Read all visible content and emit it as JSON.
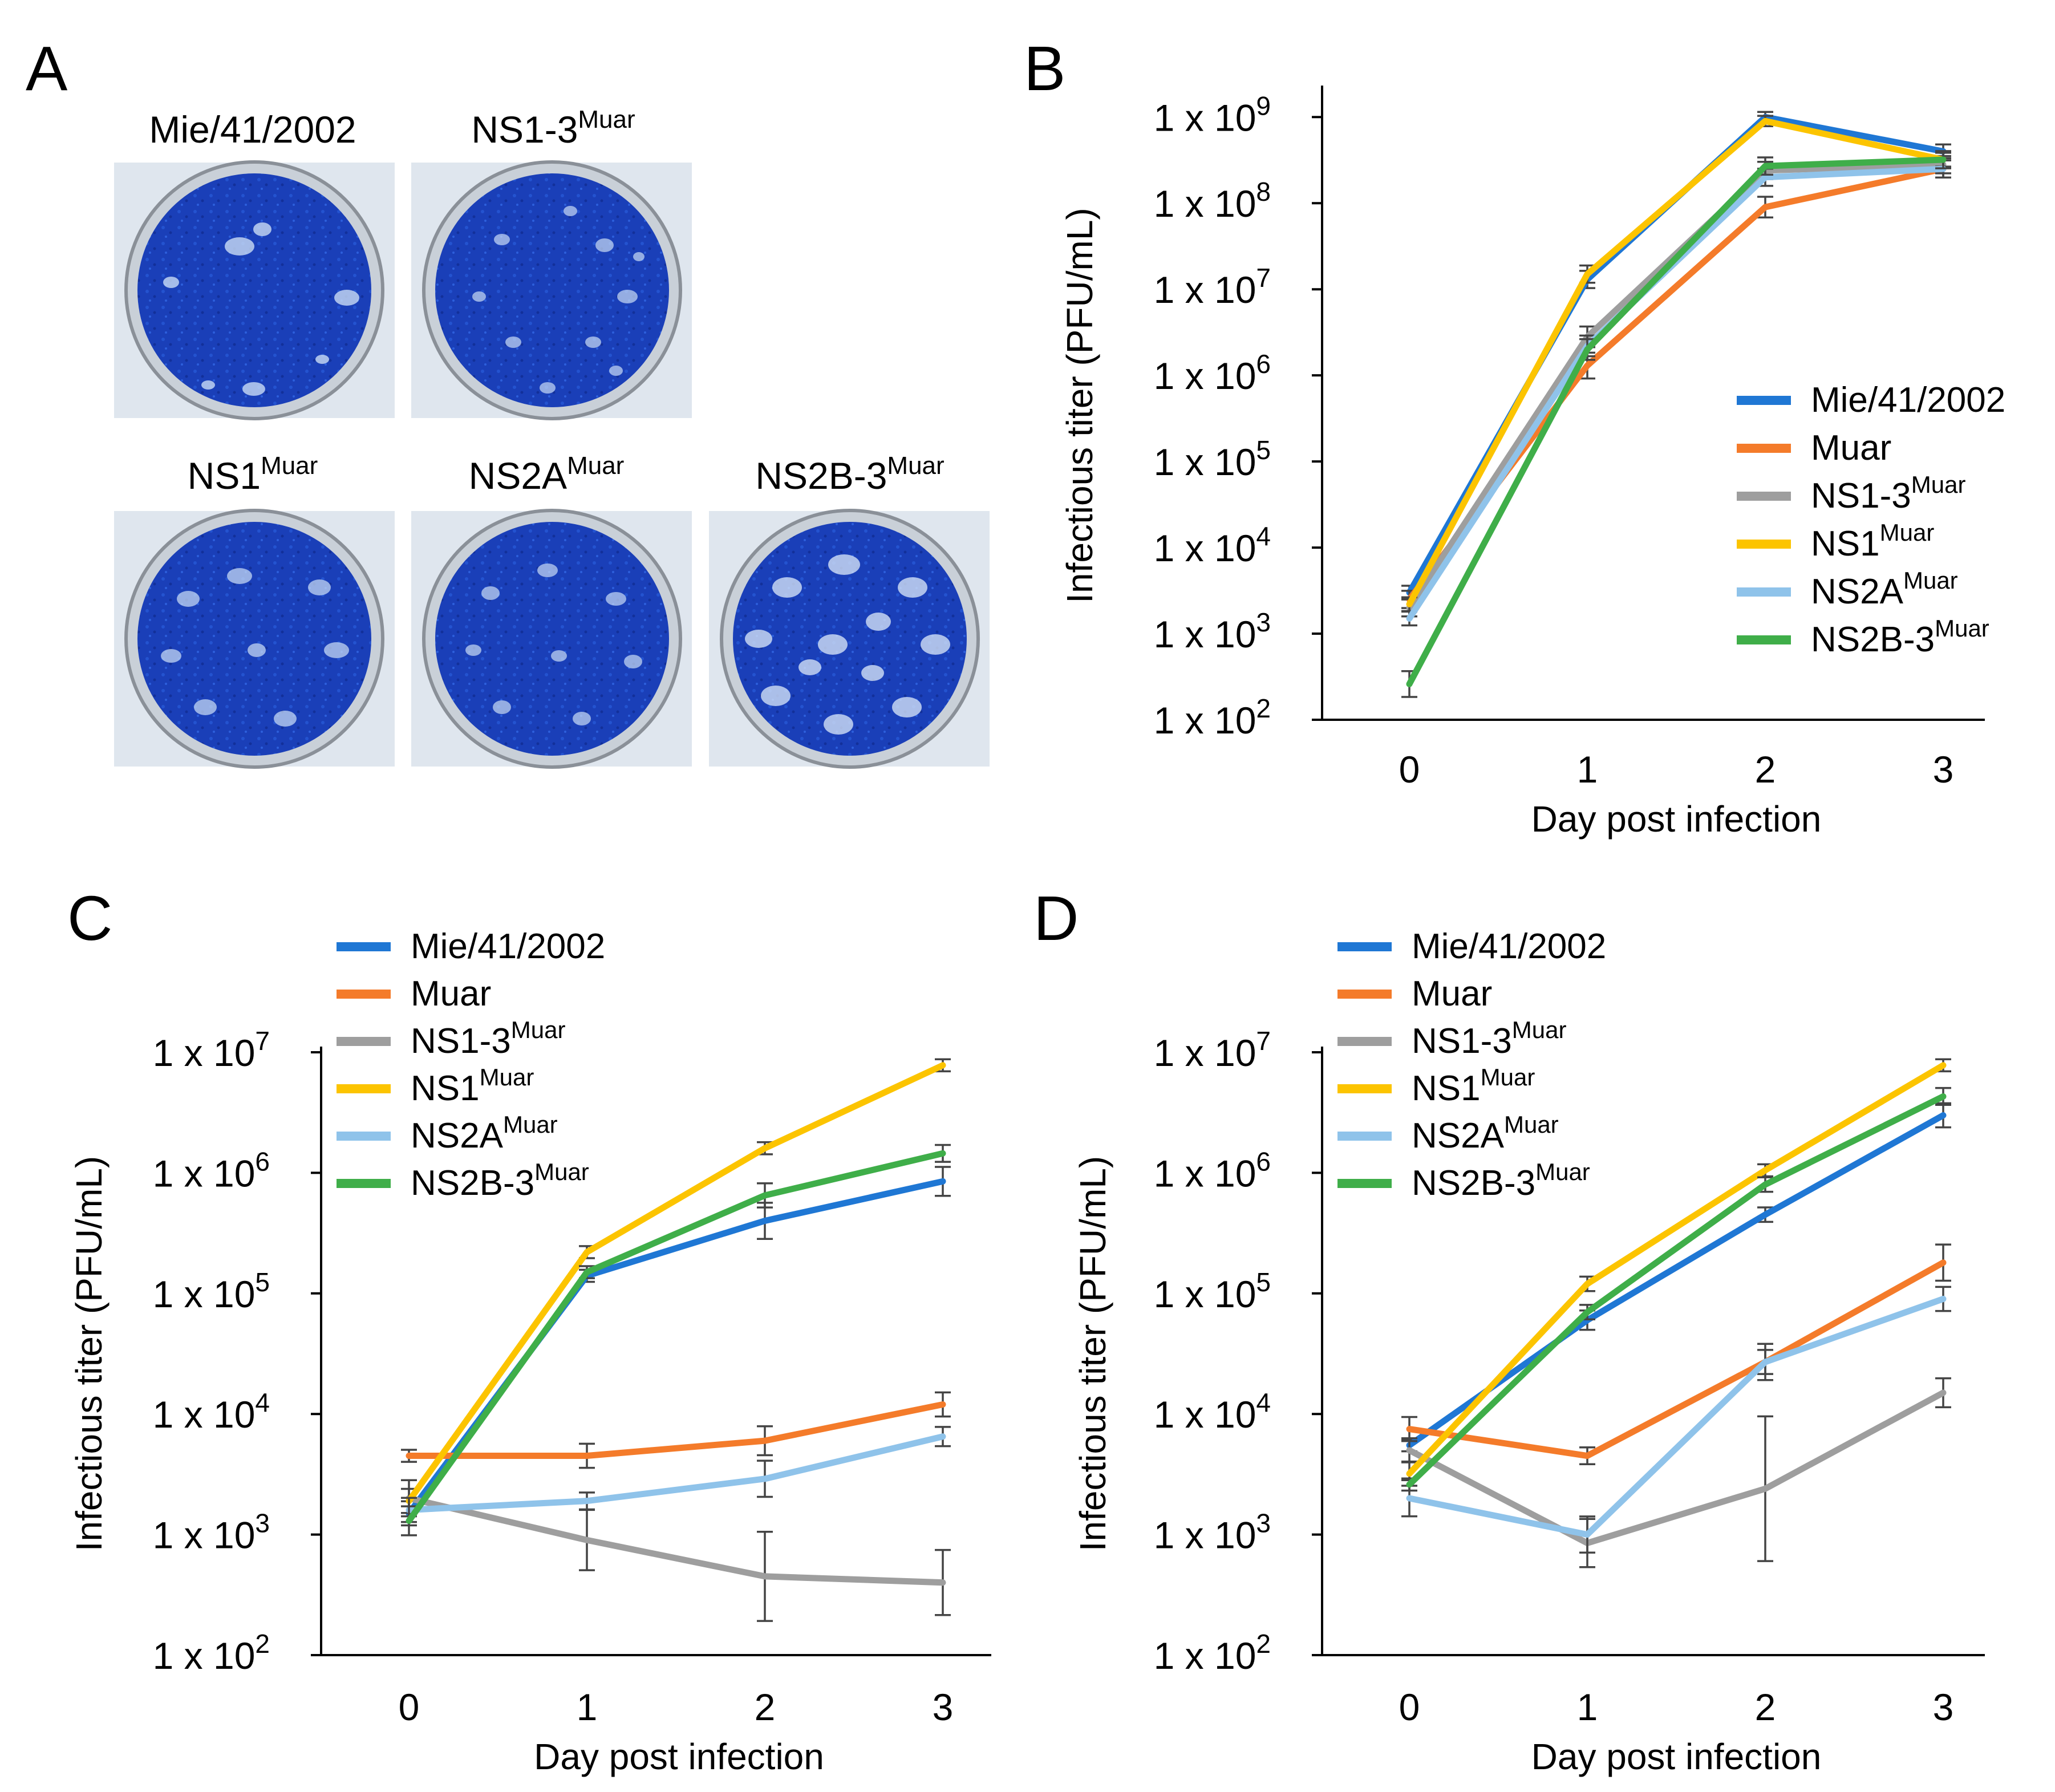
{
  "panels": {
    "a": {
      "label": "A"
    },
    "b": {
      "label": "B"
    },
    "c": {
      "label": "C"
    },
    "d": {
      "label": "D"
    }
  },
  "wells": [
    {
      "name": "Mie/41/2002",
      "sup": ""
    },
    {
      "name": "NS1-3",
      "sup": "Muar"
    },
    {
      "name": "NS1",
      "sup": "Muar"
    },
    {
      "name": "NS2A",
      "sup": "Muar"
    },
    {
      "name": "NS2B-3",
      "sup": "Muar"
    }
  ],
  "colors": {
    "Mie/41/2002": "#1f77d4",
    "Muar": "#f47b2a",
    "NS1-3": "#9e9e9e",
    "NS1": "#fcc400",
    "NS2A": "#8fc3ea",
    "NS2B-3": "#3fae49"
  },
  "chart_data": [
    {
      "panel": "B",
      "type": "line",
      "title": "",
      "xlabel": "Day post infection",
      "ylabel": "Infectious titer (PFU/mL)",
      "x": [
        0,
        1,
        2,
        3
      ],
      "yscale": "log10",
      "ylim_log10": [
        2,
        9.3
      ],
      "yticks_log10": [
        2,
        3,
        4,
        5,
        6,
        7,
        8,
        9
      ],
      "ytick_labels": [
        "1 x 10",
        "1 x 10",
        "1 x 10",
        "1 x 10",
        "1 x 10",
        "1 x 10",
        "1 x 10",
        "1 x 10"
      ],
      "ytick_exponents": [
        "2",
        "3",
        "4",
        "5",
        "6",
        "7",
        "8",
        "9"
      ],
      "legend_position": "right",
      "series": [
        {
          "name": "Mie/41/2002",
          "sup": "",
          "values": [
            3000,
            13000000,
            1000000000,
            400000000
          ],
          "err": [
            0.08,
            0.1,
            0.06,
            0.08
          ]
        },
        {
          "name": "Muar",
          "sup": "",
          "values": [
            2500,
            1300000,
            90000000,
            250000000
          ],
          "err": [
            0.1,
            0.15,
            0.12,
            0.1
          ]
        },
        {
          "name": "NS1-3",
          "sup": "Muar",
          "values": [
            2000,
            2800000,
            240000000,
            280000000
          ],
          "err": [
            0.1,
            0.12,
            0.1,
            0.1
          ]
        },
        {
          "name": "NS1",
          "sup": "Muar",
          "values": [
            2200,
            15000000,
            900000000,
            320000000
          ],
          "err": [
            0.08,
            0.1,
            0.06,
            0.08
          ]
        },
        {
          "name": "NS2A",
          "sup": "Muar",
          "values": [
            1500,
            2200000,
            200000000,
            250000000
          ],
          "err": [
            0.08,
            0.12,
            0.1,
            0.1
          ]
        },
        {
          "name": "NS2B-3",
          "sup": "Muar",
          "values": [
            260,
            2000000,
            270000000,
            320000000
          ],
          "err": [
            0.15,
            0.12,
            0.1,
            0.1
          ]
        }
      ]
    },
    {
      "panel": "C",
      "type": "line",
      "title": "",
      "xlabel": "Day post infection",
      "ylabel": "Infectious titer (PFU/mL)",
      "x": [
        0,
        1,
        2,
        3
      ],
      "yscale": "log10",
      "ylim_log10": [
        2,
        7
      ],
      "yticks_log10": [
        2,
        3,
        4,
        5,
        6,
        7
      ],
      "ytick_labels": [
        "1 x 10",
        "1 x 10",
        "1 x 10",
        "1 x 10",
        "1 x 10",
        "1 x 10"
      ],
      "ytick_exponents": [
        "2",
        "3",
        "4",
        "5",
        "6",
        "7"
      ],
      "legend_position": "top-left",
      "series": [
        {
          "name": "Mie/41/2002",
          "sup": "",
          "values": [
            1500,
            140000,
            400000,
            850000
          ],
          "err": [
            0.1,
            0.05,
            0.15,
            0.12
          ]
        },
        {
          "name": "Muar",
          "sup": "",
          "values": [
            4500,
            4500,
            6000,
            12000
          ],
          "err": [
            0.05,
            0.1,
            0.12,
            0.1
          ]
        },
        {
          "name": "NS1-3",
          "sup": "Muar",
          "values": [
            2000,
            900,
            450,
            400
          ],
          "err": [
            0.15,
            0.25,
            0.37,
            0.27
          ]
        },
        {
          "name": "NS1",
          "sup": "Muar",
          "values": [
            1900,
            220000,
            1600000,
            7800000
          ],
          "err": [
            0.1,
            0.05,
            0.05,
            0.05
          ]
        },
        {
          "name": "NS2A",
          "sup": "Muar",
          "values": [
            1600,
            1900,
            2900,
            6500
          ],
          "err": [
            0.1,
            0.07,
            0.15,
            0.08
          ]
        },
        {
          "name": "NS2B-3",
          "sup": "Muar",
          "values": [
            1300,
            150000,
            650000,
            1450000
          ],
          "err": [
            0.12,
            0.05,
            0.1,
            0.07
          ]
        }
      ]
    },
    {
      "panel": "D",
      "type": "line",
      "title": "",
      "xlabel": "Day post infection",
      "ylabel": "Infectious titer (PFU/mL)",
      "x": [
        0,
        1,
        2,
        3
      ],
      "yscale": "log10",
      "ylim_log10": [
        2,
        7
      ],
      "yticks_log10": [
        2,
        3,
        4,
        5,
        6,
        7
      ],
      "ytick_labels": [
        "1 x 10",
        "1 x 10",
        "1 x 10",
        "1 x 10",
        "1 x 10",
        "1 x 10"
      ],
      "ytick_exponents": [
        "2",
        "3",
        "4",
        "5",
        "6",
        "7"
      ],
      "legend_position": "top-left",
      "series": [
        {
          "name": "Mie/41/2002",
          "sup": "",
          "values": [
            5500,
            60000,
            450000,
            3000000
          ],
          "err": [
            0.05,
            0.08,
            0.06,
            0.1
          ]
        },
        {
          "name": "Muar",
          "sup": "",
          "values": [
            7500,
            4500,
            27000,
            180000
          ],
          "err": [
            0.1,
            0.07,
            0.1,
            0.15
          ]
        },
        {
          "name": "NS1-3",
          "sup": "Muar",
          "values": [
            5000,
            850,
            2400,
            15000
          ],
          "err": [
            0.1,
            0.2,
            0.6,
            0.12
          ]
        },
        {
          "name": "NS1",
          "sup": "Muar",
          "values": [
            3200,
            120000,
            1050000,
            7800000
          ],
          "err": [
            0.1,
            0.06,
            0.05,
            0.05
          ]
        },
        {
          "name": "NS2A",
          "sup": "Muar",
          "values": [
            2000,
            1000,
            27000,
            90000
          ],
          "err": [
            0.15,
            0.15,
            0.15,
            0.1
          ]
        },
        {
          "name": "NS2B-3",
          "sup": "Muar",
          "values": [
            2600,
            70000,
            800000,
            4300000
          ],
          "err": [
            0.05,
            0.06,
            0.06,
            0.07
          ]
        }
      ]
    }
  ]
}
